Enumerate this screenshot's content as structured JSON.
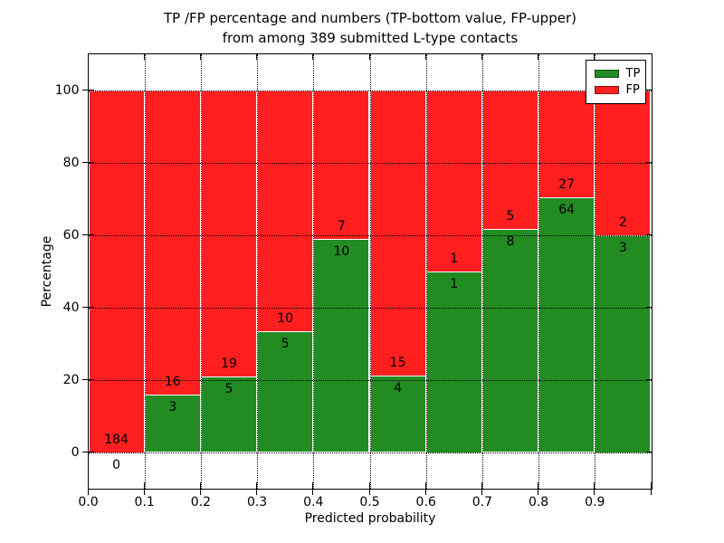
{
  "chart_data": {
    "type": "bar",
    "stacked": true,
    "title_line1": "TP /FP percentage and numbers (TP-bottom value, FP-upper)",
    "title_line2": "from among 389 submitted L-type contacts",
    "xlabel": "Predicted probability",
    "ylabel": "Percentage",
    "xlim": [
      0.0,
      1.0
    ],
    "ylim": [
      -10,
      110
    ],
    "grid": true,
    "total_contacts": 389,
    "bin_edges": [
      0.0,
      0.1,
      0.2,
      0.3,
      0.4,
      0.5,
      0.6,
      0.7,
      0.8,
      0.9,
      1.0
    ],
    "xtick_labels": [
      "0.0",
      "0.1",
      "0.2",
      "0.3",
      "0.4",
      "0.5",
      "0.6",
      "0.7",
      "0.8",
      "0.9"
    ],
    "ytick_values": [
      0,
      20,
      40,
      60,
      80,
      100
    ],
    "series": [
      {
        "name": "TP",
        "color": "#228B22",
        "counts": [
          0,
          3,
          5,
          5,
          10,
          4,
          1,
          8,
          64,
          3
        ]
      },
      {
        "name": "FP",
        "color": "#FF1F1F",
        "counts": [
          184,
          16,
          19,
          10,
          7,
          15,
          1,
          5,
          27,
          2
        ]
      }
    ],
    "tp_percentages": [
      0.0,
      15.8,
      20.8,
      33.3,
      58.8,
      21.1,
      50.0,
      61.5,
      70.3,
      60.0
    ],
    "legend": {
      "position": "upper right",
      "entries": [
        {
          "label": "TP",
          "color": "#228B22"
        },
        {
          "label": "FP",
          "color": "#FF1F1F"
        }
      ]
    }
  }
}
